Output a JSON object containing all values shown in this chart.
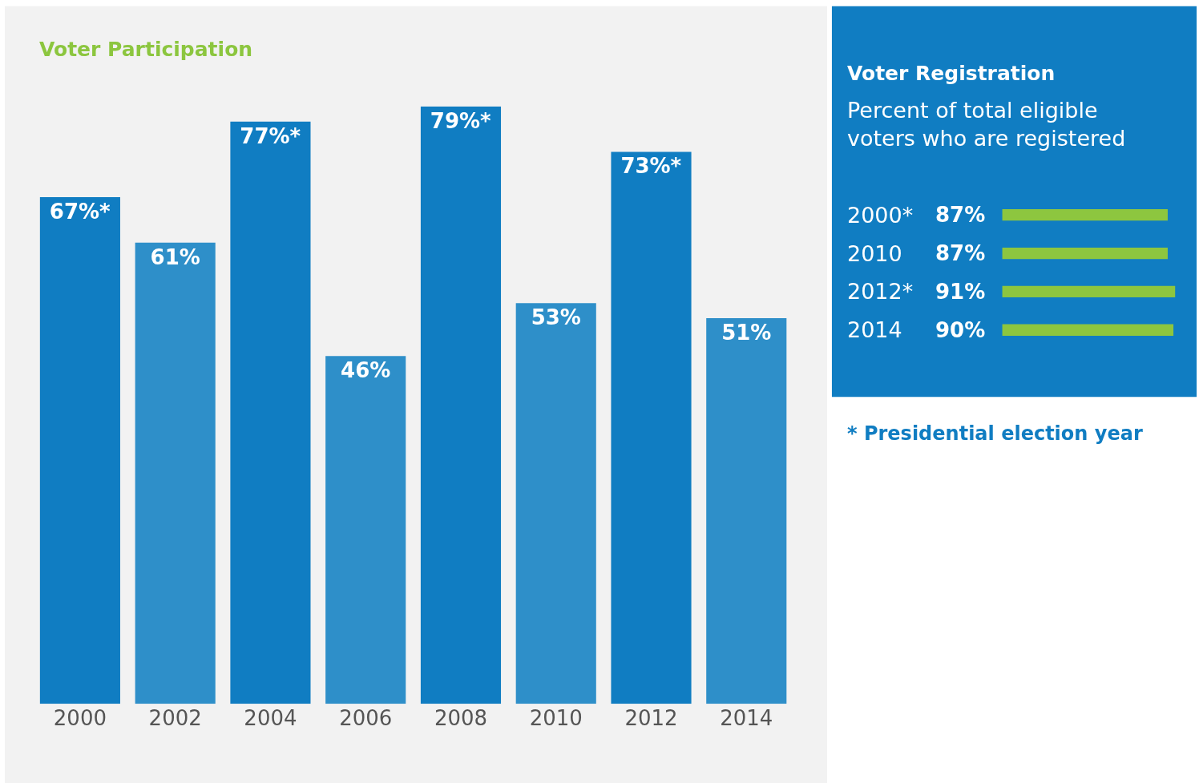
{
  "chart_data": [
    {
      "type": "bar",
      "title": "Voter Participation",
      "categories": [
        "2000",
        "2002",
        "2004",
        "2006",
        "2008",
        "2010",
        "2012",
        "2014"
      ],
      "values": [
        67,
        61,
        77,
        46,
        79,
        53,
        73,
        51
      ],
      "value_labels": [
        "67%*",
        "61%",
        "77%*",
        "46%",
        "79%*",
        "53%",
        "73%*",
        "51%"
      ],
      "colors": [
        "#107dc2",
        "#2e8fc9",
        "#107dc2",
        "#2e8fc9",
        "#107dc2",
        "#2e8fc9",
        "#107dc2",
        "#2e8fc9"
      ]
    },
    {
      "type": "bar",
      "orientation": "horizontal",
      "title": "Voter Registration",
      "subtitle": "Percent of total eligible\nvoters who are registered",
      "categories": [
        "2000*",
        "2010",
        "2012*",
        "2014"
      ],
      "values": [
        87,
        87,
        91,
        90
      ],
      "value_labels": [
        "87%",
        "87%",
        "91%",
        "90%"
      ],
      "colors": [
        "#8dc63f",
        "#8dc63f",
        "#8dc63f",
        "#8dc63f"
      ],
      "annotations": [
        "* Presidential election year"
      ]
    }
  ]
}
